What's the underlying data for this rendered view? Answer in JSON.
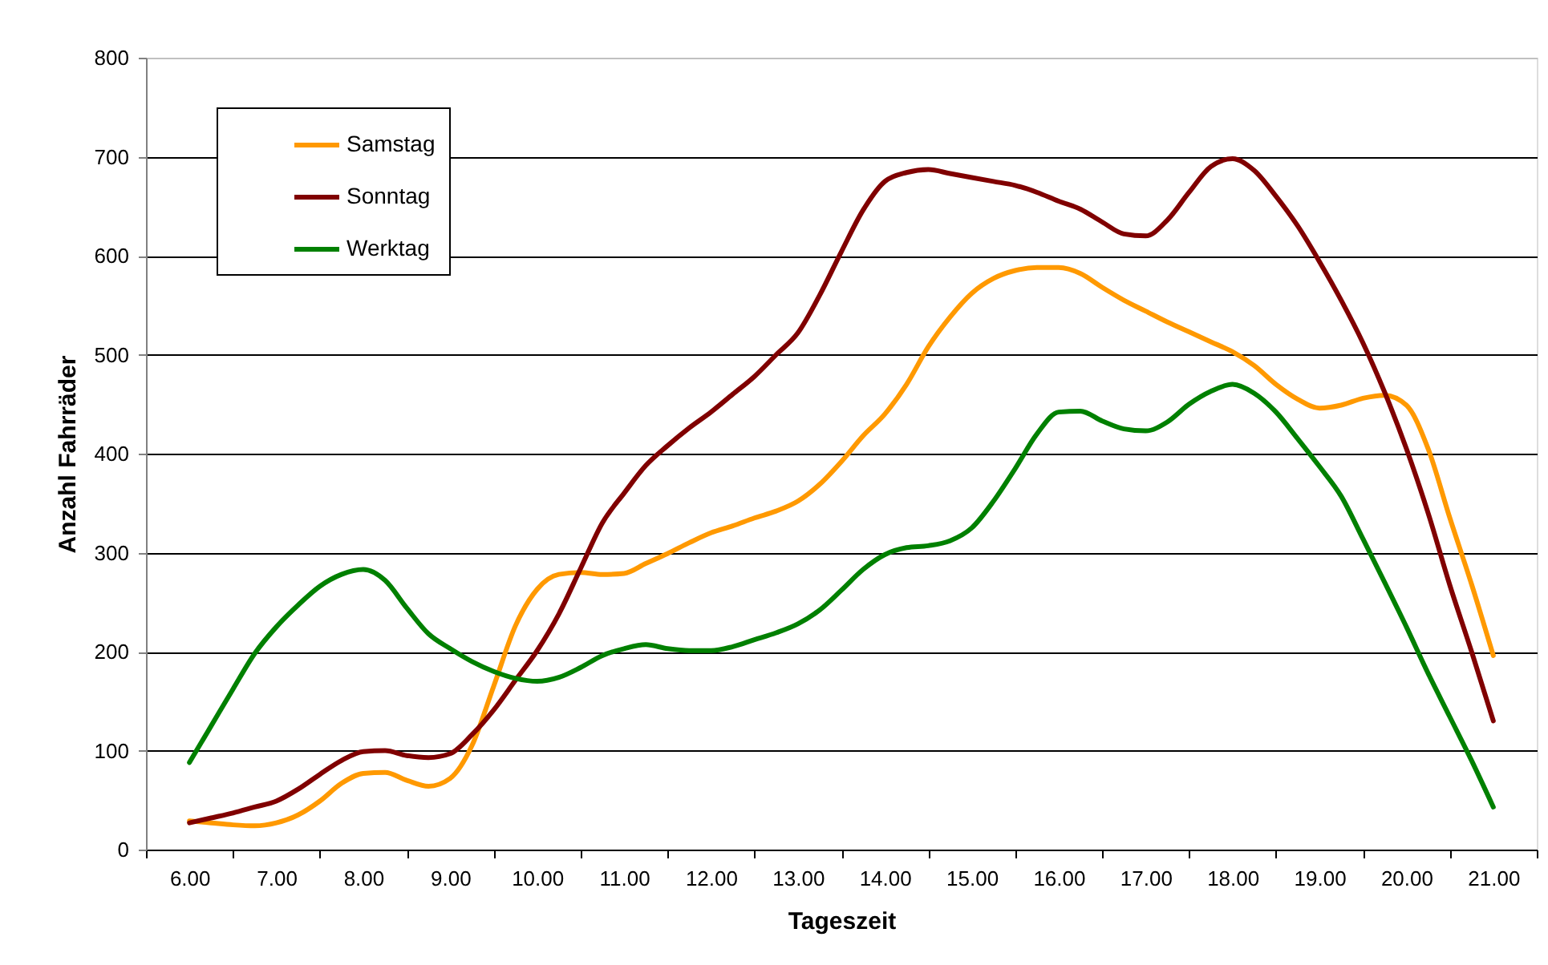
{
  "chart_data": {
    "type": "line",
    "xlabel": "Tageszeit",
    "ylabel": "Anzahl Fahrräder",
    "x": [
      6,
      6.25,
      6.5,
      6.75,
      7,
      7.25,
      7.5,
      7.75,
      8,
      8.25,
      8.5,
      8.75,
      9,
      9.25,
      9.5,
      9.75,
      10,
      10.25,
      10.5,
      10.75,
      11,
      11.25,
      11.5,
      11.75,
      12,
      12.25,
      12.5,
      12.75,
      13,
      13.25,
      13.5,
      13.75,
      14,
      14.25,
      14.5,
      14.75,
      15,
      15.25,
      15.5,
      15.75,
      16,
      16.25,
      16.5,
      16.75,
      17,
      17.25,
      17.5,
      17.75,
      18,
      18.25,
      18.5,
      18.75,
      19,
      19.25,
      19.5,
      19.75,
      20,
      20.25,
      20.5,
      20.75,
      21
    ],
    "xlim": [
      5.5,
      21.5
    ],
    "xticks": [
      {
        "value": 5.5,
        "label": null
      },
      {
        "value": 6,
        "label": "6.00"
      },
      {
        "value": 6.5,
        "label": null
      },
      {
        "value": 7,
        "label": "7.00"
      },
      {
        "value": 7.5,
        "label": null
      },
      {
        "value": 8,
        "label": "8.00"
      },
      {
        "value": 8.5,
        "label": null
      },
      {
        "value": 9,
        "label": "9.00"
      },
      {
        "value": 9.5,
        "label": null
      },
      {
        "value": 10,
        "label": "10.00"
      },
      {
        "value": 10.5,
        "label": null
      },
      {
        "value": 11,
        "label": "11.00"
      },
      {
        "value": 11.5,
        "label": null
      },
      {
        "value": 12,
        "label": "12.00"
      },
      {
        "value": 12.5,
        "label": null
      },
      {
        "value": 13,
        "label": "13.00"
      },
      {
        "value": 13.5,
        "label": null
      },
      {
        "value": 14,
        "label": "14.00"
      },
      {
        "value": 14.5,
        "label": null
      },
      {
        "value": 15,
        "label": "15.00"
      },
      {
        "value": 15.5,
        "label": null
      },
      {
        "value": 16,
        "label": "16.00"
      },
      {
        "value": 16.5,
        "label": null
      },
      {
        "value": 17,
        "label": "17.00"
      },
      {
        "value": 17.5,
        "label": null
      },
      {
        "value": 18,
        "label": "18.00"
      },
      {
        "value": 18.5,
        "label": null
      },
      {
        "value": 19,
        "label": "19.00"
      },
      {
        "value": 19.5,
        "label": null
      },
      {
        "value": 20,
        "label": "20.00"
      },
      {
        "value": 20.5,
        "label": null
      },
      {
        "value": 21,
        "label": "21.00"
      },
      {
        "value": 21.5,
        "label": null
      }
    ],
    "ylim": [
      0,
      800
    ],
    "yticks": [
      0,
      100,
      200,
      300,
      400,
      500,
      600,
      700,
      800
    ],
    "grid": "y",
    "legend": "top left",
    "line_style": "solid",
    "series": [
      {
        "name": "Samstag",
        "color": "#ff9900",
        "values": [
          29,
          27,
          25,
          24,
          27,
          35,
          49,
          67,
          77,
          78,
          70,
          64,
          72,
          105,
          165,
          226,
          263,
          278,
          280,
          278,
          279,
          289,
          299,
          310,
          320,
          327,
          335,
          342,
          352,
          369,
          392,
          418,
          440,
          470,
          508,
          538,
          562,
          577,
          585,
          588,
          588,
          582,
          568,
          555,
          544,
          533,
          523,
          513,
          503,
          489,
          470,
          455,
          446,
          449,
          456,
          459,
          449,
          405,
          335,
          268,
          196
        ]
      },
      {
        "name": "Sonntag",
        "color": "#800000",
        "values": [
          27,
          32,
          37,
          43,
          49,
          61,
          76,
          90,
          99,
          100,
          95,
          93,
          97,
          116,
          141,
          171,
          201,
          238,
          284,
          330,
          360,
          388,
          408,
          426,
          442,
          460,
          478,
          500,
          522,
          560,
          604,
          646,
          675,
          684,
          687,
          683,
          679,
          675,
          671,
          664,
          655,
          647,
          634,
          622,
          620,
          636,
          664,
          690,
          698,
          686,
          660,
          630,
          594,
          555,
          512,
          462,
          405,
          340,
          267,
          200,
          130
        ]
      },
      {
        "name": "Werktag",
        "color": "#008000",
        "values": [
          88,
          125,
          162,
          198,
          225,
          247,
          266,
          278,
          283,
          272,
          244,
          218,
          203,
          190,
          180,
          173,
          170,
          174,
          184,
          196,
          203,
          207,
          203,
          201,
          201,
          205,
          212,
          219,
          228,
          242,
          262,
          283,
          298,
          305,
          307,
          312,
          325,
          352,
          385,
          420,
          442,
          443,
          433,
          425,
          423,
          432,
          450,
          463,
          470,
          461,
          442,
          415,
          387,
          357,
          314,
          270,
          225,
          178,
          134,
          90,
          43
        ]
      }
    ]
  }
}
